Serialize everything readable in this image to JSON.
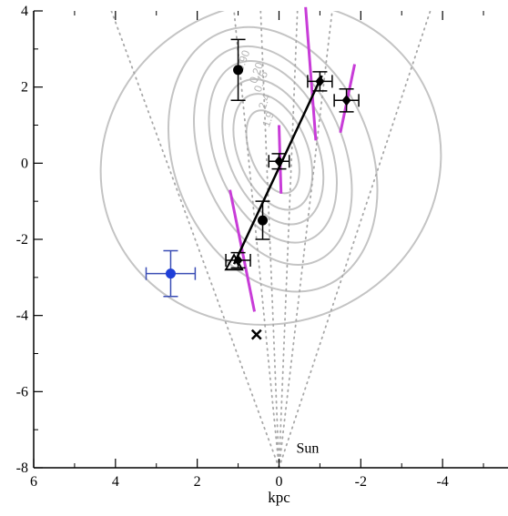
{
  "chart_data": {
    "type": "scatter",
    "title": "",
    "xlabel": "kpc",
    "ylabel": "",
    "xlim": [
      6,
      -5.6
    ],
    "ylim": [
      -8,
      4
    ],
    "x_ticks": [
      {
        "value": 6,
        "label": "6"
      },
      {
        "value": 4,
        "label": "4"
      },
      {
        "value": 2,
        "label": "2"
      },
      {
        "value": 0,
        "label": "0"
      },
      {
        "value": -2,
        "label": "-2"
      },
      {
        "value": -4,
        "label": "-4"
      }
    ],
    "y_ticks": [
      {
        "value": 4,
        "label": "4"
      },
      {
        "value": 2,
        "label": "2"
      },
      {
        "value": 0,
        "label": "0"
      },
      {
        "value": -2,
        "label": "-2"
      },
      {
        "value": -4,
        "label": "-4"
      },
      {
        "value": -6,
        "label": "-6"
      },
      {
        "value": -8,
        "label": "-8"
      }
    ],
    "grid": false,
    "colors": {
      "points": "#000000",
      "highlight_point": "#1f3fd8",
      "highlight_errorbar": "#3a4db5",
      "magenta_segments": "#c83cd8",
      "contours": "#c4c4c4",
      "contour_labels": "#b5b5b5",
      "sightlines": "#a8a8a8"
    },
    "series": [
      {
        "marker": "circle-filled",
        "points": [
          {
            "x": 1.0,
            "y": 2.45,
            "yerr": 0.8
          },
          {
            "x": 0.4,
            "y": -1.5,
            "yerr": 0.5
          }
        ]
      },
      {
        "marker": "diamond-in-box",
        "points": [
          {
            "x": -1.0,
            "y": 2.15,
            "xerr": 0.3,
            "yerr": 0.25
          },
          {
            "x": -1.65,
            "y": 1.65,
            "xerr": 0.3,
            "yerr": 0.3
          },
          {
            "x": 0.0,
            "y": 0.05,
            "xerr": 0.25,
            "yerr": 0.2
          },
          {
            "x": 1.0,
            "y": -2.55,
            "xerr": 0.3,
            "yerr": 0.2
          }
        ]
      },
      {
        "marker": "circle-blue",
        "points": [
          {
            "x": 2.65,
            "y": -2.9,
            "xerr": 0.6,
            "yerr": 0.6
          }
        ]
      }
    ],
    "triangle_marker": {
      "x": 1.1,
      "y": -2.65
    },
    "cross_marker": {
      "x": 0.55,
      "y": -4.5
    },
    "fit_line": {
      "x1": 1.1,
      "y1": -2.65,
      "x2": -1.05,
      "y2": 2.3
    },
    "segments": [
      {
        "x1": 1.2,
        "y1": -0.7,
        "x2": 0.6,
        "y2": -3.9
      },
      {
        "x1": 0.0,
        "y1": 1.0,
        "x2": -0.05,
        "y2": -0.8
      },
      {
        "x1": -0.65,
        "y1": 4.1,
        "x2": -0.9,
        "y2": 0.6
      },
      {
        "x1": -1.85,
        "y1": 2.6,
        "x2": -1.5,
        "y2": 0.8
      }
    ],
    "contours": [
      {
        "label": "1.9",
        "cx": 0.15,
        "cy": 0.3,
        "a": 0.55,
        "b": 1.15,
        "rot": -22
      },
      {
        "label": "",
        "cx": 0.15,
        "cy": 0.3,
        "a": 0.85,
        "b": 1.6,
        "rot": -22
      },
      {
        "label": "2.4",
        "cx": 0.15,
        "cy": 0.3,
        "a": 1.1,
        "b": 2.0,
        "rot": -22
      },
      {
        "label": "",
        "cx": 0.15,
        "cy": 0.3,
        "a": 1.4,
        "b": 2.5,
        "rot": -22
      },
      {
        "label": "0.75",
        "cx": 0.15,
        "cy": 0.2,
        "a": 1.75,
        "b": 3.0,
        "rot": -22
      },
      {
        "label": "0.20",
        "cx": 0.15,
        "cy": 0.1,
        "a": 2.4,
        "b": 3.6,
        "rot": -22
      },
      {
        "label": "-0.90",
        "cx": 0.2,
        "cy": 0.0,
        "a": 4.2,
        "b": 4.2,
        "rot": -22
      }
    ],
    "sightline_origin": {
      "x": 0,
      "y": -8
    },
    "sightlines": [
      {
        "x_end": 4.1,
        "y_end": 4
      },
      {
        "x_end": 1.1,
        "y_end": 4
      },
      {
        "x_end": 0.45,
        "y_end": 4
      },
      {
        "x_end": -0.45,
        "y_end": 4
      },
      {
        "x_end": -1.3,
        "y_end": 4
      },
      {
        "x_end": -3.7,
        "y_end": 4
      }
    ],
    "annotations": [
      {
        "text": "Sun",
        "x": -0.7,
        "y": -7.6
      }
    ]
  }
}
